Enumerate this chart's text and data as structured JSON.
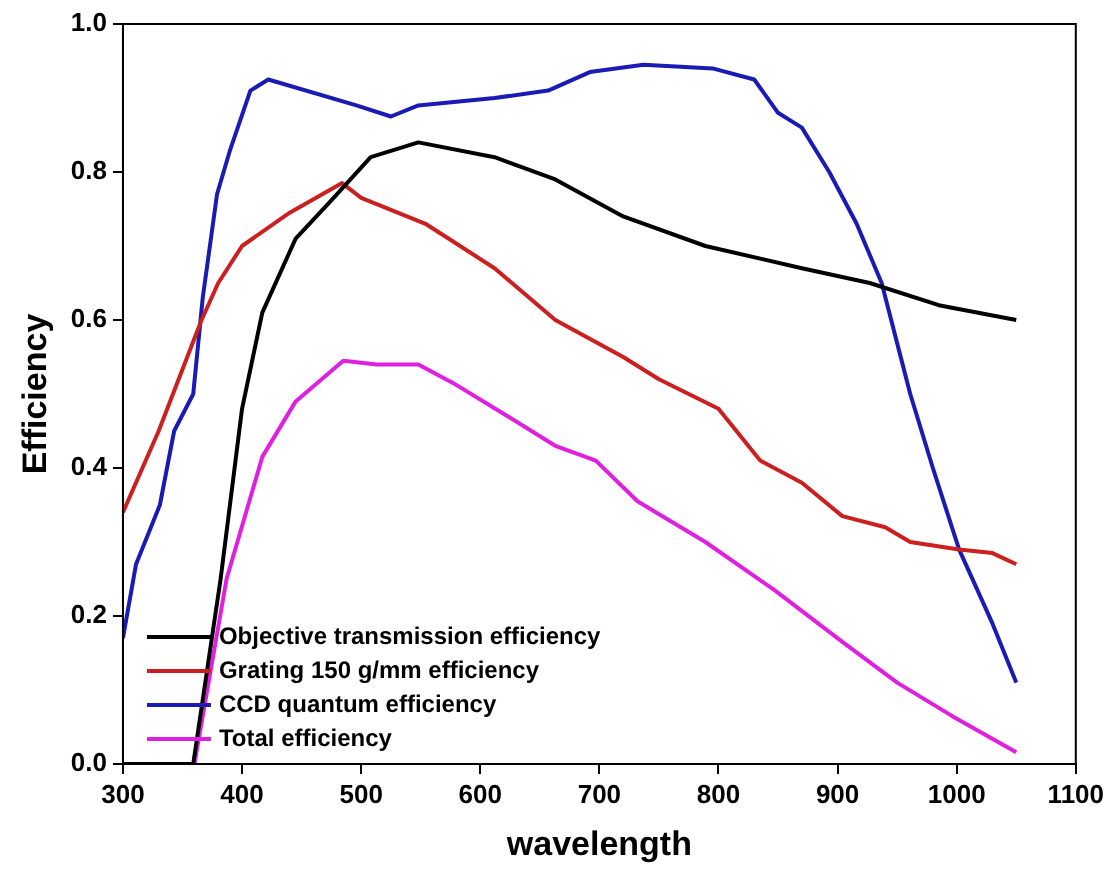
{
  "chart_data": {
    "type": "line",
    "xlabel": "wavelength",
    "ylabel": "Efficiency",
    "xlim": [
      300,
      1100
    ],
    "xticks": [
      300,
      400,
      500,
      600,
      700,
      800,
      900,
      1000,
      1100
    ],
    "ylim": [
      0,
      1.0
    ],
    "yticks": [
      {
        "value": 0,
        "label": "0.0"
      },
      0.2,
      0.4,
      0.6,
      0.8,
      {
        "value": 1,
        "label": "1.0"
      }
    ],
    "grid": false,
    "legend": "bottom left",
    "marker": "none",
    "line_style": "solid",
    "series": [
      {
        "name": "Objective transmission efficiency",
        "color": "#000000",
        "x": [
          300,
          359,
          382,
          400,
          417,
          445,
          474,
          508,
          548,
          612,
          663,
          720,
          789,
          870,
          927,
          985,
          1050
        ],
        "values": [
          0,
          0,
          0.25,
          0.48,
          0.61,
          0.71,
          0.76,
          0.82,
          0.84,
          0.82,
          0.79,
          0.74,
          0.7,
          0.67,
          0.65,
          0.62,
          0.6
        ]
      },
      {
        "name": "Grating 150 g/mm efficiency",
        "color": "#cc1f1f",
        "x": [
          300,
          330,
          366,
          380,
          400,
          440,
          484,
          500,
          554,
          612,
          663,
          720,
          750,
          800,
          835,
          870,
          904,
          940,
          961,
          1002,
          1030,
          1050
        ],
        "values": [
          0.34,
          0.45,
          0.6,
          0.65,
          0.7,
          0.745,
          0.785,
          0.765,
          0.73,
          0.67,
          0.6,
          0.55,
          0.52,
          0.48,
          0.41,
          0.38,
          0.335,
          0.32,
          0.3,
          0.29,
          0.285,
          0.27
        ]
      },
      {
        "name": "CCD quantum efficiency",
        "color": "#1a1ab4",
        "x": [
          300,
          311,
          331,
          343,
          359,
          367,
          379,
          390,
          407,
          422,
          496,
          525,
          548,
          612,
          657,
          692,
          737,
          795,
          830,
          850,
          870,
          893,
          916,
          937,
          961,
          980,
          1002,
          1030,
          1050
        ],
        "values": [
          0.17,
          0.27,
          0.35,
          0.45,
          0.5,
          0.63,
          0.77,
          0.83,
          0.91,
          0.925,
          0.89,
          0.875,
          0.89,
          0.9,
          0.91,
          0.935,
          0.945,
          0.94,
          0.925,
          0.88,
          0.86,
          0.8,
          0.73,
          0.65,
          0.5,
          0.4,
          0.29,
          0.19,
          0.11
        ]
      },
      {
        "name": "Total efficiency",
        "color": "#e020e0",
        "x": [
          300,
          360,
          387,
          417,
          445,
          485,
          513,
          548,
          577,
          623,
          663,
          697,
          732,
          789,
          847,
          904,
          950,
          996,
          1050
        ],
        "values": [
          0,
          0,
          0.25,
          0.415,
          0.49,
          0.545,
          0.54,
          0.54,
          0.515,
          0.47,
          0.43,
          0.41,
          0.355,
          0.3,
          0.235,
          0.165,
          0.11,
          0.065,
          0.016
        ]
      }
    ]
  }
}
